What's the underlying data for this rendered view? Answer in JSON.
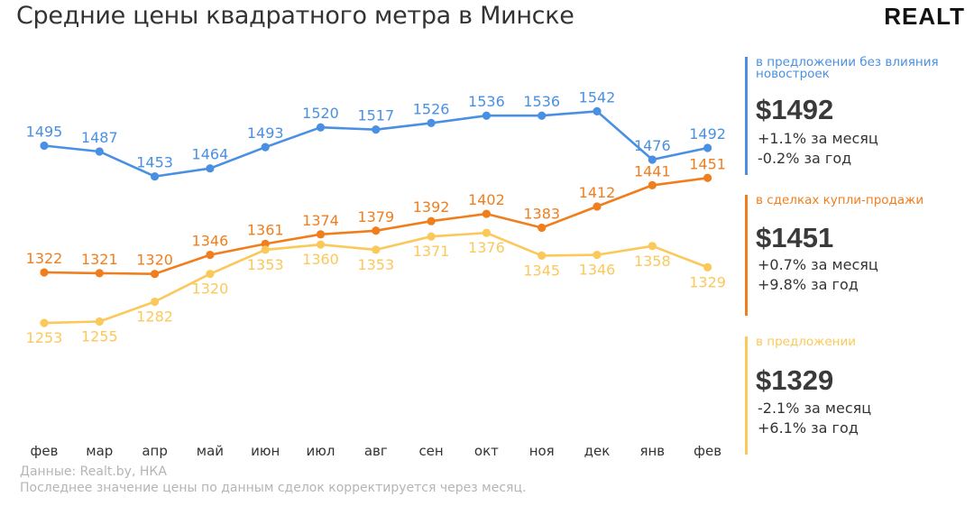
{
  "header": {
    "title": "Средние цены квадратного метра в Минске",
    "brand": "REALT"
  },
  "footer": {
    "source": "Данные: Realt.by, НКА",
    "note": "Последнее значение цены по данным сделок корректируется через месяц."
  },
  "colors": {
    "blue": "#4a90e2",
    "orange": "#f07e1d",
    "yellow": "#fbc85a",
    "axis_text": "#333333"
  },
  "chart_data": {
    "type": "line",
    "categories": [
      "фев",
      "мар",
      "апр",
      "май",
      "июн",
      "июл",
      "авг",
      "сен",
      "окт",
      "ноя",
      "дек",
      "янв",
      "фев"
    ],
    "series": [
      {
        "name": "в предложении без влияния новостроек",
        "color": "#4a90e2",
        "values": [
          1495,
          1487,
          1453,
          1464,
          1493,
          1520,
          1517,
          1526,
          1536,
          1536,
          1542,
          1476,
          1492
        ]
      },
      {
        "name": "в сделках купли-продажи",
        "color": "#f07e1d",
        "values": [
          1322,
          1321,
          1320,
          1346,
          1361,
          1374,
          1379,
          1392,
          1402,
          1383,
          1412,
          1441,
          1451
        ]
      },
      {
        "name": "в предложении",
        "color": "#fbc85a",
        "values": [
          1253,
          1255,
          1282,
          1320,
          1353,
          1360,
          1353,
          1371,
          1376,
          1345,
          1346,
          1358,
          1329
        ]
      }
    ],
    "title": "Средние цены квадратного метра в Минске",
    "xlabel": "",
    "ylabel": "",
    "ylim": [
      1130,
      1620
    ],
    "grid": false,
    "data_labels": true
  },
  "panels": [
    {
      "label": "в предложении без влияния новостроек",
      "color": "#4a90e2",
      "value": "$1492",
      "monthly": "+1.1% за месяц",
      "yearly": "-0.2% за год"
    },
    {
      "label": "в сделках купли-продажи",
      "color": "#f07e1d",
      "value": "$1451",
      "monthly": "+0.7% за месяц",
      "yearly": "+9.8% за год"
    },
    {
      "label": "в предложении",
      "color": "#fbc85a",
      "value": "$1329",
      "monthly": "-2.1% за месяц",
      "yearly": "+6.1% за год"
    }
  ]
}
